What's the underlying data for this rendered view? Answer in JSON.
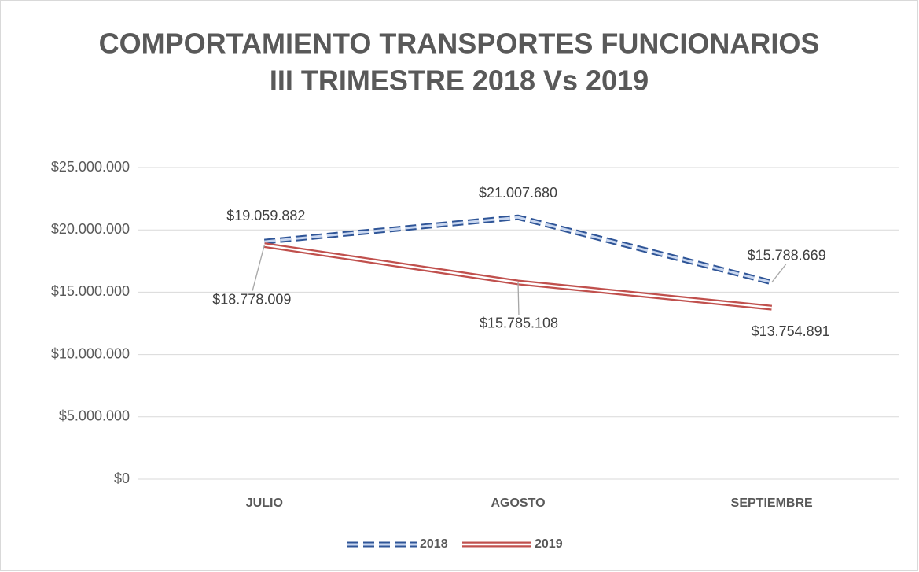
{
  "chart_data": {
    "type": "line",
    "title": [
      "COMPORTAMIENTO TRANSPORTES FUNCIONARIOS",
      "III TRIMESTRE 2018 Vs 2019"
    ],
    "categories": [
      "JULIO",
      "AGOSTO",
      "SEPTIEMBRE"
    ],
    "series": [
      {
        "name": "2018",
        "color": "#4472c4",
        "dashed": true,
        "values": [
          19059882,
          21007680,
          15788669
        ],
        "value_labels": [
          "$19.059.882",
          "$21.007.680",
          "$15.788.669"
        ]
      },
      {
        "name": "2019",
        "color": "#c0504d",
        "dashed": false,
        "values": [
          18778009,
          15785108,
          13754891
        ],
        "value_labels": [
          "$18.778.009",
          "$15.785.108",
          "$13.754.891"
        ]
      }
    ],
    "ylim": [
      0,
      25000000
    ],
    "yticks": [
      {
        "value": 0,
        "label": "$0"
      },
      {
        "value": 5000000,
        "label": "$5.000.000"
      },
      {
        "value": 10000000,
        "label": "$10.000.000"
      },
      {
        "value": 15000000,
        "label": "$15.000.000"
      },
      {
        "value": 20000000,
        "label": "$20.000.000"
      },
      {
        "value": 25000000,
        "label": "$25.000.000"
      }
    ],
    "grid": true,
    "legend": "bottom"
  }
}
